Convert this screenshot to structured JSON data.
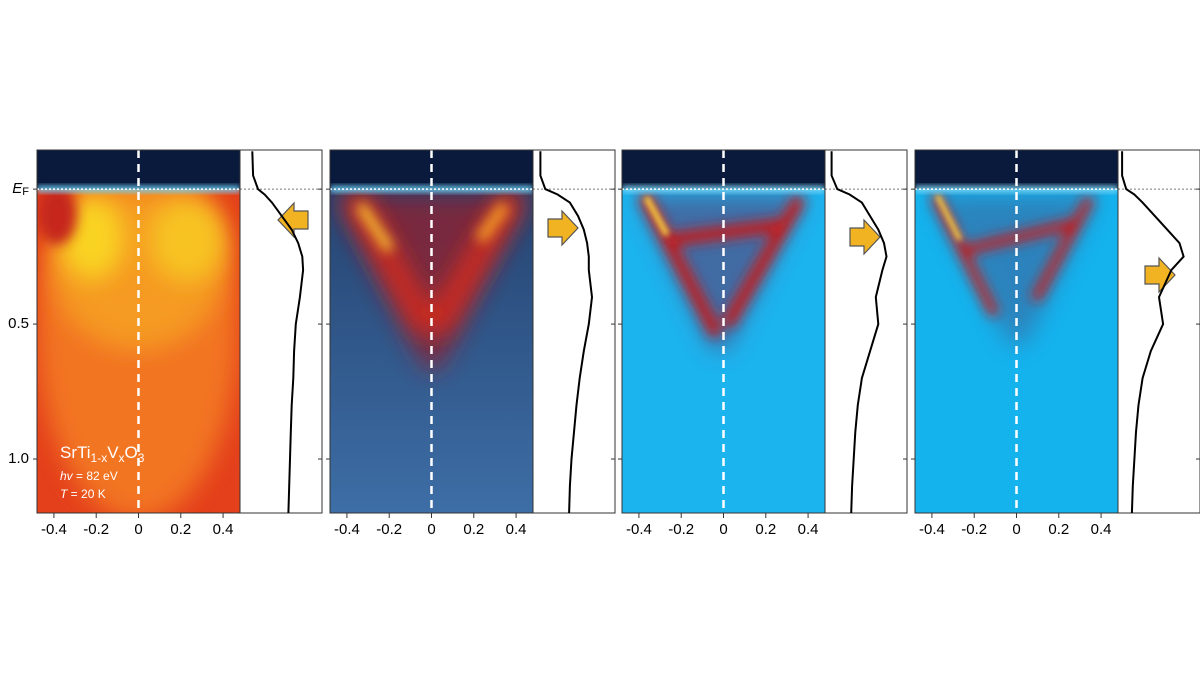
{
  "chart_data": [
    {
      "type": "arpes",
      "xlim": [
        -0.48,
        0.48
      ],
      "xticks": [
        -0.4,
        -0.2,
        0,
        0.2,
        0.4
      ],
      "ylim": [
        -0.145,
        1.2
      ],
      "yticks": [
        {
          "value": 0,
          "label": "E",
          "label_sub": "F"
        },
        0.5,
        {
          "value": 1.0,
          "label": "1.0"
        }
      ],
      "sample": [
        "SrTi",
        "1-x",
        "V",
        "x",
        "O",
        "3"
      ],
      "photon": [
        "hv",
        " = 82 eV"
      ],
      "temperature": [
        "T",
        " = 20 K"
      ],
      "edc": {
        "energy": [
          -0.14,
          -0.05,
          0,
          0.02,
          0.05,
          0.1,
          0.15,
          0.2,
          0.25,
          0.3,
          0.4,
          0.5,
          0.6,
          0.7,
          0.8,
          0.9,
          1.0,
          1.1,
          1.2
        ],
        "intensity": [
          0.15,
          0.16,
          0.22,
          0.3,
          0.39,
          0.51,
          0.63,
          0.71,
          0.76,
          0.77,
          0.73,
          0.68,
          0.66,
          0.65,
          0.63,
          0.62,
          0.61,
          0.6,
          0.59
        ]
      }
    },
    {
      "type": "arpes",
      "xlim": [
        -0.48,
        0.48
      ],
      "xticks": [
        -0.4,
        -0.2,
        0,
        0.2,
        0.4
      ],
      "ylim": [
        -0.145,
        1.2
      ],
      "edc": {
        "energy": [
          -0.14,
          -0.05,
          0,
          0.02,
          0.05,
          0.1,
          0.15,
          0.2,
          0.25,
          0.3,
          0.4,
          0.5,
          0.6,
          0.7,
          0.8,
          0.9,
          1.0,
          1.1,
          1.2
        ],
        "intensity": [
          0.09,
          0.09,
          0.15,
          0.3,
          0.45,
          0.55,
          0.62,
          0.66,
          0.68,
          0.68,
          0.72,
          0.68,
          0.62,
          0.57,
          0.53,
          0.5,
          0.47,
          0.45,
          0.44
        ]
      }
    },
    {
      "type": "arpes",
      "xlim": [
        -0.48,
        0.48
      ],
      "xticks": [
        -0.4,
        -0.2,
        0,
        0.2,
        0.4
      ],
      "ylim": [
        -0.145,
        1.2
      ],
      "edc": {
        "energy": [
          -0.14,
          -0.05,
          0,
          0.02,
          0.05,
          0.1,
          0.15,
          0.2,
          0.25,
          0.3,
          0.4,
          0.5,
          0.6,
          0.7,
          0.8,
          0.9,
          1.0,
          1.1,
          1.2
        ],
        "intensity": [
          0.08,
          0.08,
          0.15,
          0.3,
          0.45,
          0.55,
          0.65,
          0.72,
          0.75,
          0.7,
          0.62,
          0.65,
          0.55,
          0.45,
          0.4,
          0.37,
          0.35,
          0.33,
          0.32
        ]
      }
    },
    {
      "type": "arpes",
      "xlim": [
        -0.48,
        0.48
      ],
      "xticks": [
        -0.4,
        -0.2,
        0,
        0.2,
        0.4
      ],
      "ylim": [
        -0.145,
        1.2
      ],
      "edc": {
        "energy": [
          -0.14,
          -0.05,
          0,
          0.02,
          0.05,
          0.1,
          0.15,
          0.2,
          0.25,
          0.3,
          0.4,
          0.5,
          0.6,
          0.7,
          0.8,
          0.9,
          1.0,
          1.1,
          1.2
        ],
        "intensity": [
          0.05,
          0.05,
          0.1,
          0.2,
          0.3,
          0.45,
          0.6,
          0.75,
          0.8,
          0.65,
          0.5,
          0.55,
          0.4,
          0.3,
          0.25,
          0.22,
          0.2,
          0.18,
          0.17
        ]
      }
    }
  ]
}
